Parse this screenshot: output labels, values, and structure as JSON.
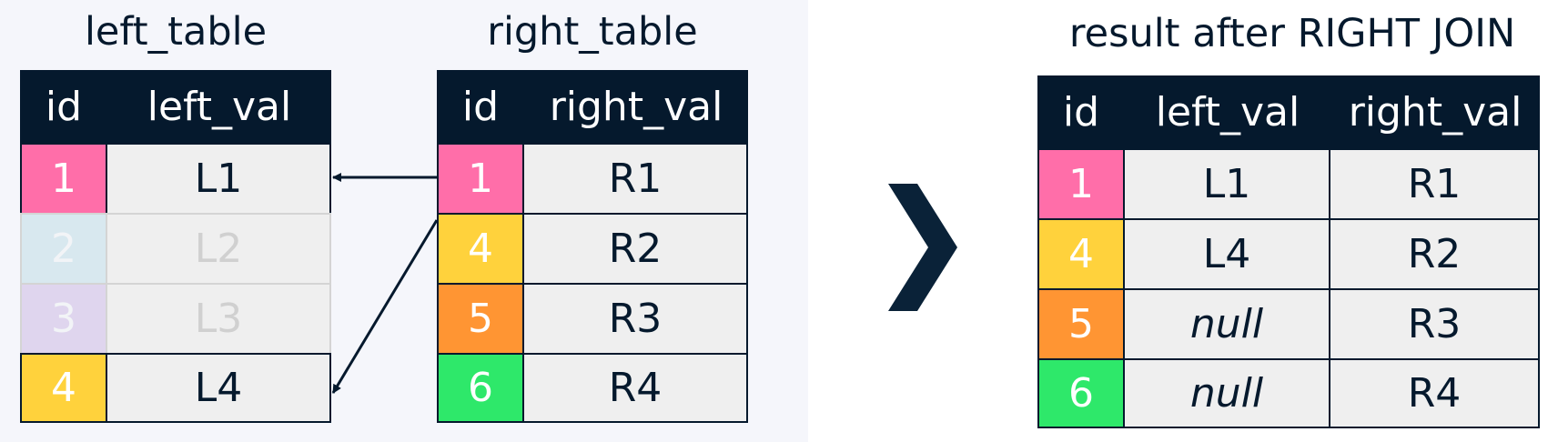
{
  "colors": {
    "header_bg": "#05192d",
    "cell_bg": "#efefef",
    "pink": "#ff6ea9",
    "yellow": "#ffd23c",
    "orange": "#ff9533",
    "green": "#2ee86a",
    "faded_blue": "#d8e8ef",
    "faded_purple": "#dfd5ee"
  },
  "left_table": {
    "title": "left_table",
    "headers": [
      "id",
      "left_val"
    ],
    "rows": [
      {
        "id": "1",
        "val": "L1",
        "color": "pink",
        "faded": false
      },
      {
        "id": "2",
        "val": "L2",
        "color": "faded_blue",
        "faded": true
      },
      {
        "id": "3",
        "val": "L3",
        "color": "faded_purple",
        "faded": true
      },
      {
        "id": "4",
        "val": "L4",
        "color": "yellow",
        "faded": false
      }
    ]
  },
  "right_table": {
    "title": "right_table",
    "headers": [
      "id",
      "right_val"
    ],
    "rows": [
      {
        "id": "1",
        "val": "R1",
        "color": "pink"
      },
      {
        "id": "4",
        "val": "R2",
        "color": "yellow"
      },
      {
        "id": "5",
        "val": "R3",
        "color": "orange"
      },
      {
        "id": "6",
        "val": "R4",
        "color": "green"
      }
    ]
  },
  "connections": [
    {
      "from_right_row": 0,
      "to_left_row": 0
    },
    {
      "from_right_row": 1,
      "to_left_row": 3
    }
  ],
  "result_table": {
    "title": "result after RIGHT JOIN",
    "headers": [
      "id",
      "left_val",
      "right_val"
    ],
    "rows": [
      {
        "id": "1",
        "left_val": "L1",
        "right_val": "R1",
        "color": "pink",
        "left_null": false
      },
      {
        "id": "4",
        "left_val": "L4",
        "right_val": "R2",
        "color": "yellow",
        "left_null": false
      },
      {
        "id": "5",
        "left_val": "null",
        "right_val": "R3",
        "color": "orange",
        "left_null": true
      },
      {
        "id": "6",
        "left_val": "null",
        "right_val": "R4",
        "color": "green",
        "left_null": true
      }
    ]
  },
  "separator_icon": "chevron-right-icon"
}
